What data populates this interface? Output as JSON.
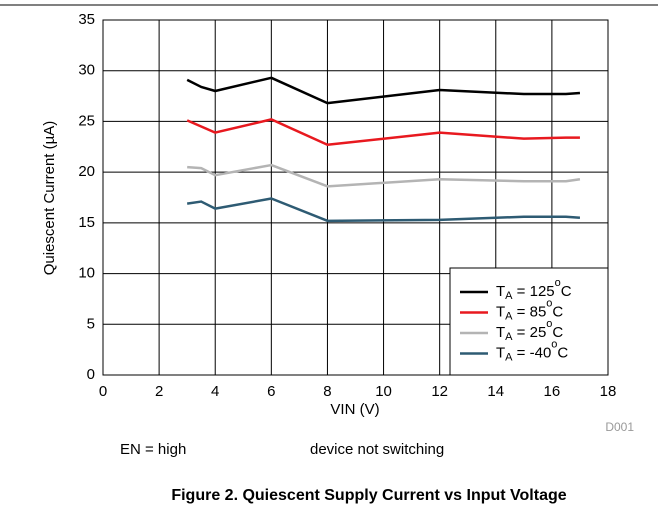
{
  "chart_data": {
    "type": "line",
    "xlabel": "VIN (V)",
    "ylabel": "Quiescent Current (µA)",
    "x": [
      3,
      3.5,
      4,
      6,
      8,
      12,
      15,
      16.5,
      17
    ],
    "series": [
      {
        "name": "TA = 125oC",
        "color": "#000000",
        "values": [
          29.1,
          28.4,
          28.0,
          29.3,
          26.8,
          28.1,
          27.7,
          27.7,
          27.8
        ]
      },
      {
        "name": "TA = 85oC",
        "color": "#e8191f",
        "values": [
          25.1,
          24.5,
          23.9,
          25.2,
          22.7,
          23.9,
          23.3,
          23.4,
          23.4
        ]
      },
      {
        "name": "TA = 25oC",
        "color": "#b4b4b4",
        "values": [
          20.5,
          20.4,
          19.7,
          20.7,
          18.6,
          19.3,
          19.1,
          19.1,
          19.3
        ]
      },
      {
        "name": "TA = -40oC",
        "color": "#2e5b73",
        "values": [
          16.9,
          17.1,
          16.4,
          17.4,
          15.2,
          15.3,
          15.6,
          15.6,
          15.5
        ]
      }
    ],
    "xlim": [
      0,
      18
    ],
    "xticks": [
      0,
      2,
      4,
      6,
      8,
      10,
      12,
      14,
      16,
      18
    ],
    "ylim": [
      0,
      35
    ],
    "yticks": [
      0,
      5,
      10,
      15,
      20,
      25,
      30,
      35
    ],
    "grid": true,
    "legend": "lower right",
    "annotations": [
      "D001",
      "EN = high",
      "device not switching"
    ],
    "caption": "Figure 2. Quiescent Supply Current vs Input Voltage"
  }
}
